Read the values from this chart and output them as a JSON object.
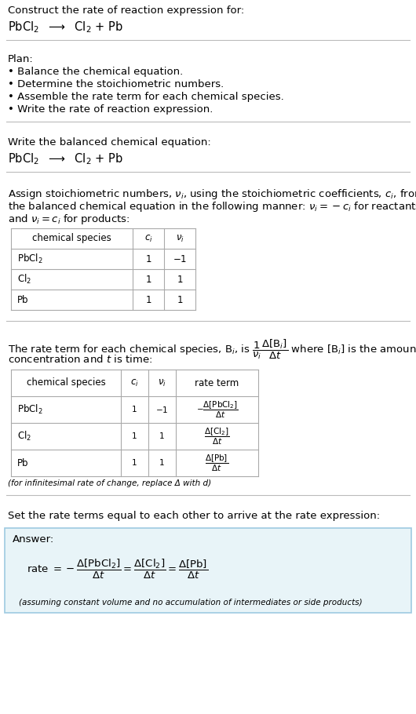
{
  "title_text": "Construct the rate of reaction expression for:",
  "reaction_header": "PbCl$_2$  $\\longrightarrow$  Cl$_2$ + Pb",
  "plan_title": "Plan:",
  "plan_bullets": [
    "• Balance the chemical equation.",
    "• Determine the stoichiometric numbers.",
    "• Assemble the rate term for each chemical species.",
    "• Write the rate of reaction expression."
  ],
  "balanced_eq_label": "Write the balanced chemical equation:",
  "balanced_eq": "PbCl$_2$  $\\longrightarrow$  Cl$_2$ + Pb",
  "stoich_intro_line1": "Assign stoichiometric numbers, $\\nu_i$, using the stoichiometric coefficients, $c_i$, from",
  "stoich_intro_line2": "the balanced chemical equation in the following manner: $\\nu_i = -c_i$ for reactants",
  "stoich_intro_line3": "and $\\nu_i = c_i$ for products:",
  "table1_headers": [
    "chemical species",
    "$c_i$",
    "$\\nu_i$"
  ],
  "table1_rows": [
    [
      "PbCl$_2$",
      "1",
      "$-1$"
    ],
    [
      "Cl$_2$",
      "1",
      "1"
    ],
    [
      "Pb",
      "1",
      "1"
    ]
  ],
  "rate_term_line1": "The rate term for each chemical species, B$_i$, is $\\dfrac{1}{\\nu_i}\\dfrac{\\Delta[\\mathrm{B}_i]}{\\Delta t}$ where [B$_i$] is the amount",
  "rate_term_line2": "concentration and $t$ is time:",
  "table2_headers": [
    "chemical species",
    "$c_i$",
    "$\\nu_i$",
    "rate term"
  ],
  "table2_rows": [
    [
      "PbCl$_2$",
      "1",
      "$-1$",
      "$-\\dfrac{\\Delta[\\mathrm{PbCl_2}]}{\\Delta t}$"
    ],
    [
      "Cl$_2$",
      "1",
      "1",
      "$\\dfrac{\\Delta[\\mathrm{Cl_2}]}{\\Delta t}$"
    ],
    [
      "Pb",
      "1",
      "1",
      "$\\dfrac{\\Delta[\\mathrm{Pb}]}{\\Delta t}$"
    ]
  ],
  "infinitesimal_note": "(for infinitesimal rate of change, replace Δ with d)",
  "rate_expr_label": "Set the rate terms equal to each other to arrive at the rate expression:",
  "answer_label": "Answer:",
  "answer_rate": "rate $= -\\dfrac{\\Delta[\\mathrm{PbCl_2}]}{\\Delta t} = \\dfrac{\\Delta[\\mathrm{Cl_2}]}{\\Delta t} = \\dfrac{\\Delta[\\mathrm{Pb}]}{\\Delta t}$",
  "answer_note": "(assuming constant volume and no accumulation of intermediates or side products)",
  "bg_color": "#ffffff",
  "answer_box_color": "#e8f4f8",
  "answer_box_border": "#9ecae1",
  "table_border_color": "#aaaaaa",
  "text_color": "#000000",
  "separator_color": "#bbbbbb"
}
